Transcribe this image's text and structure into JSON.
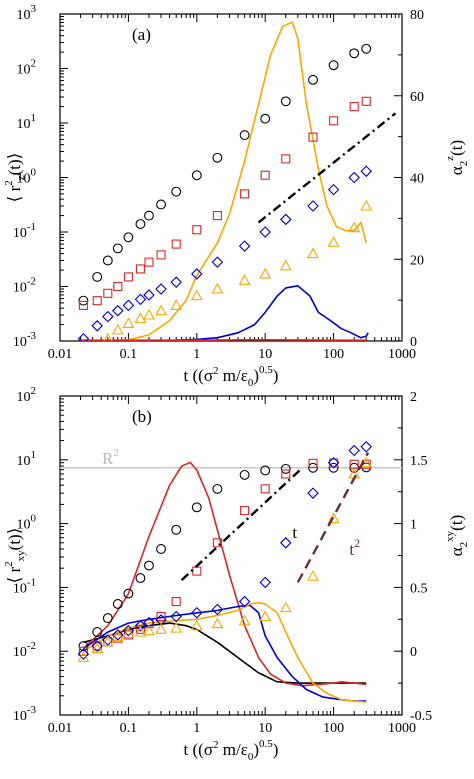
{
  "chart_data": [
    {
      "type": "scatter",
      "panel_label": "(a)",
      "xlabel": {
        "pre": "t ((σ",
        "sup1": "2",
        "mid": " m/ε",
        "sub": "0",
        "post": ")",
        "sup2": "0.5",
        "end": ")"
      },
      "ylabel_left": {
        "pre": "⟨ r",
        "sup": "2",
        "sub": "z",
        "post": "(t)⟩"
      },
      "ylabel_right": {
        "pre": "α",
        "sub": "2",
        "sup": "z",
        "post": "(t)"
      },
      "x_scale": "log",
      "xlim": [
        0.01,
        1000
      ],
      "xticks": [
        "0.01",
        "0.1",
        "1",
        "10",
        "100",
        "1000"
      ],
      "y_left_scale": "log",
      "ylim_left": [
        0.001,
        1000
      ],
      "yticks_left": [
        {
          "b": "10",
          "e": "3"
        },
        {
          "b": "10",
          "e": "2"
        },
        {
          "b": "10",
          "e": "1"
        },
        {
          "b": "10",
          "e": "0"
        },
        {
          "b": "10",
          "e": "-1"
        },
        {
          "b": "10",
          "e": "-2"
        },
        {
          "b": "10",
          "e": "-3"
        }
      ],
      "ylim_right": [
        0,
        80
      ],
      "yticks_right": [
        "80",
        "60",
        "40",
        "20",
        "0"
      ],
      "markers": [
        {
          "marker": "circle",
          "color": "#000000",
          "x": [
            0.022,
            0.035,
            0.05,
            0.07,
            0.1,
            0.15,
            0.2,
            0.3,
            0.5,
            1,
            2,
            5,
            10,
            20,
            50,
            100,
            200,
            300
          ],
          "y": [
            0.0055,
            0.015,
            0.03,
            0.05,
            0.08,
            0.14,
            0.2,
            0.32,
            0.55,
            1.1,
            2.3,
            6,
            12,
            25,
            62,
            115,
            190,
            230
          ]
        },
        {
          "marker": "square",
          "color": "#d62728",
          "x": [
            0.022,
            0.035,
            0.05,
            0.07,
            0.1,
            0.15,
            0.2,
            0.3,
            0.5,
            1,
            2,
            5,
            10,
            20,
            50,
            100,
            200,
            300
          ],
          "y": [
            0.0045,
            0.0055,
            0.0075,
            0.01,
            0.015,
            0.021,
            0.028,
            0.038,
            0.06,
            0.11,
            0.2,
            0.5,
            1.1,
            2.2,
            5.5,
            11,
            20,
            25
          ]
        },
        {
          "marker": "diamond",
          "color": "#0000cc",
          "x": [
            0.022,
            0.035,
            0.05,
            0.07,
            0.1,
            0.15,
            0.2,
            0.3,
            0.5,
            1,
            2,
            5,
            10,
            20,
            50,
            100,
            200,
            300
          ],
          "y": [
            0.0011,
            0.0019,
            0.0028,
            0.0036,
            0.0045,
            0.0058,
            0.007,
            0.009,
            0.012,
            0.017,
            0.028,
            0.055,
            0.1,
            0.17,
            0.3,
            0.6,
            1.0,
            1.3
          ]
        },
        {
          "marker": "triangle",
          "color": "#f5a800",
          "x": [
            0.05,
            0.07,
            0.1,
            0.15,
            0.2,
            0.3,
            0.5,
            1,
            2,
            5,
            10,
            20,
            50,
            100,
            200,
            300
          ],
          "y": [
            0.0011,
            0.0016,
            0.0021,
            0.0026,
            0.003,
            0.0036,
            0.0045,
            0.0068,
            0.009,
            0.013,
            0.017,
            0.024,
            0.04,
            0.065,
            0.12,
            0.3
          ]
        }
      ],
      "lines": [
        {
          "axis": "right",
          "color": "#f5a800",
          "x": [
            0.05,
            0.1,
            0.2,
            0.4,
            0.7,
            1,
            2,
            3,
            5,
            8,
            12,
            18,
            25,
            30,
            40,
            60,
            80,
            110,
            150,
            200,
            250,
            280,
            300
          ],
          "y": [
            0,
            0.3,
            1.5,
            5,
            10,
            16,
            24,
            31,
            44,
            58,
            70,
            77,
            78,
            74,
            58,
            42,
            33,
            28,
            27,
            27,
            29,
            26,
            24
          ]
        },
        {
          "axis": "right",
          "color": "#0000cc",
          "x": [
            0.2,
            0.5,
            1,
            2,
            4,
            7,
            10,
            15,
            20,
            30,
            45,
            60,
            90,
            130,
            180,
            250,
            300,
            320
          ],
          "y": [
            0,
            0.2,
            0.4,
            0.8,
            2,
            4,
            7,
            11,
            13,
            13.5,
            11,
            7,
            5,
            3,
            2,
            0.8,
            1.2,
            2
          ]
        },
        {
          "axis": "right",
          "color": "#d62728",
          "x": [
            0.02,
            1,
            10,
            100,
            300
          ],
          "y": [
            0.2,
            0.2,
            0.3,
            0.2,
            0.2
          ]
        }
      ],
      "guide": {
        "style": "dash-dot",
        "color": "#000000",
        "x": [
          8,
          800
        ],
        "y": [
          0.15,
          15
        ]
      }
    },
    {
      "type": "scatter",
      "panel_label": "(b)",
      "xlabel": {
        "pre": "t ((σ",
        "sup1": "2",
        "mid": " m/ε",
        "sub": "0",
        "post": ")",
        "sup2": "0.5",
        "end": ")"
      },
      "ylabel_left": {
        "pre": "⟨ r",
        "sup": "2",
        "sub": "xy",
        "post": "(t)⟩"
      },
      "ylabel_right": {
        "pre": "α",
        "sub": "2",
        "sup": "xy",
        "post": "(t)"
      },
      "x_scale": "log",
      "xlim": [
        0.01,
        1000
      ],
      "xticks": [
        "0.01",
        "0.1",
        "1",
        "10",
        "100",
        "1000"
      ],
      "y_left_scale": "log",
      "ylim_left": [
        0.001,
        100
      ],
      "yticks_left": [
        {
          "b": "10",
          "e": "2"
        },
        {
          "b": "10",
          "e": "1"
        },
        {
          "b": "10",
          "e": "0"
        },
        {
          "b": "10",
          "e": "-1"
        },
        {
          "b": "10",
          "e": "-2"
        },
        {
          "b": "10",
          "e": "-3"
        }
      ],
      "ylim_right": [
        -0.5,
        2
      ],
      "yticks_right": [
        "2",
        "1.5",
        "1",
        "0.5",
        "0",
        "-0.5"
      ],
      "reference": {
        "label": "R",
        "label_sup": "2",
        "y": 7.5,
        "color": "#c8c8c8"
      },
      "annotations": [
        {
          "text": "t",
          "sup": "",
          "x": 25,
          "y": 0.6,
          "color": "#000000"
        },
        {
          "text": "t",
          "sup": "2",
          "x": 170,
          "y": 0.32,
          "color": "#6b2a40"
        }
      ],
      "markers": [
        {
          "marker": "circle",
          "color": "#000000",
          "x": [
            0.022,
            0.035,
            0.05,
            0.07,
            0.1,
            0.15,
            0.2,
            0.3,
            0.5,
            1,
            2,
            5,
            10,
            20,
            50,
            100,
            200,
            300
          ],
          "y": [
            0.012,
            0.02,
            0.033,
            0.055,
            0.08,
            0.14,
            0.22,
            0.4,
            0.8,
            1.8,
            3.5,
            5.8,
            6.8,
            7.2,
            7.5,
            7.5,
            7.5,
            7.6
          ]
        },
        {
          "marker": "square",
          "color": "#d62728",
          "x": [
            0.022,
            0.035,
            0.05,
            0.07,
            0.1,
            0.15,
            0.2,
            0.3,
            0.5,
            1,
            2,
            5,
            10,
            20,
            50,
            100,
            200,
            300
          ],
          "y": [
            0.01,
            0.012,
            0.014,
            0.016,
            0.018,
            0.022,
            0.027,
            0.035,
            0.06,
            0.18,
            0.5,
            1.6,
            3.5,
            6,
            8.8,
            8.9,
            8.5,
            8.5
          ]
        },
        {
          "marker": "diamond",
          "color": "#0000cc",
          "x": [
            0.022,
            0.035,
            0.05,
            0.07,
            0.1,
            0.15,
            0.2,
            0.3,
            0.5,
            1,
            2,
            5,
            10,
            20,
            50,
            100,
            200,
            300
          ],
          "y": [
            0.009,
            0.012,
            0.015,
            0.018,
            0.021,
            0.025,
            0.028,
            0.031,
            0.035,
            0.04,
            0.045,
            0.06,
            0.12,
            0.5,
            3,
            9,
            14,
            16
          ]
        },
        {
          "marker": "triangle",
          "color": "#f5a800",
          "x": [
            0.022,
            0.035,
            0.05,
            0.07,
            0.1,
            0.15,
            0.2,
            0.3,
            0.5,
            1,
            2,
            5,
            10,
            20,
            50,
            100,
            200,
            300
          ],
          "y": [
            0.008,
            0.011,
            0.014,
            0.017,
            0.019,
            0.02,
            0.021,
            0.022,
            0.023,
            0.025,
            0.027,
            0.03,
            0.035,
            0.048,
            0.15,
            1.2,
            6,
            9
          ]
        }
      ],
      "lines": [
        {
          "axis": "right",
          "color": "#000000",
          "x": [
            0.022,
            0.05,
            0.1,
            0.2,
            0.4,
            0.7,
            1,
            2,
            4,
            8,
            15,
            30,
            60,
            100,
            200,
            300
          ],
          "y": [
            0.07,
            0.12,
            0.17,
            0.2,
            0.22,
            0.2,
            0.17,
            0.07,
            -0.05,
            -0.17,
            -0.24,
            -0.25,
            -0.25,
            -0.25,
            -0.25,
            -0.25
          ]
        },
        {
          "axis": "right",
          "color": "#d62728",
          "x": [
            0.022,
            0.05,
            0.1,
            0.2,
            0.4,
            0.6,
            0.8,
            1,
            1.5,
            2,
            3,
            5,
            8,
            12,
            20,
            35,
            60,
            100,
            130,
            200,
            300
          ],
          "y": [
            0.02,
            0.2,
            0.45,
            0.9,
            1.3,
            1.45,
            1.48,
            1.42,
            1.2,
            0.95,
            0.6,
            0.2,
            -0.05,
            -0.18,
            -0.25,
            -0.27,
            -0.26,
            -0.25,
            -0.24,
            -0.25,
            -0.26
          ]
        },
        {
          "axis": "right",
          "color": "#0000cc",
          "x": [
            0.022,
            0.05,
            0.1,
            0.2,
            0.5,
            1,
            2,
            4,
            6,
            8,
            10,
            15,
            25,
            40,
            70,
            130,
            200,
            300
          ],
          "y": [
            0.02,
            0.15,
            0.22,
            0.25,
            0.28,
            0.3,
            0.32,
            0.35,
            0.36,
            0.3,
            0.12,
            -0.05,
            -0.2,
            -0.3,
            -0.36,
            -0.38,
            -0.39,
            -0.39
          ]
        },
        {
          "axis": "right",
          "color": "#f5a800",
          "x": [
            0.022,
            0.05,
            0.1,
            0.2,
            0.5,
            1,
            2,
            4,
            6,
            8,
            10,
            15,
            20,
            30,
            50,
            80,
            130,
            200,
            300
          ],
          "y": [
            0.0,
            0.12,
            0.18,
            0.22,
            0.24,
            0.25,
            0.28,
            0.32,
            0.37,
            0.38,
            0.37,
            0.3,
            0.15,
            -0.05,
            -0.25,
            -0.33,
            -0.38,
            -0.39,
            -0.4
          ]
        }
      ],
      "guides": [
        {
          "style": "dash-dot",
          "color": "#000000",
          "x": [
            0.6,
            35
          ],
          "y": [
            0.13,
            7.5
          ]
        },
        {
          "style": "dashed",
          "color": "#6b2a40",
          "x": [
            30,
            320
          ],
          "y": [
            0.12,
            13
          ]
        }
      ]
    }
  ]
}
